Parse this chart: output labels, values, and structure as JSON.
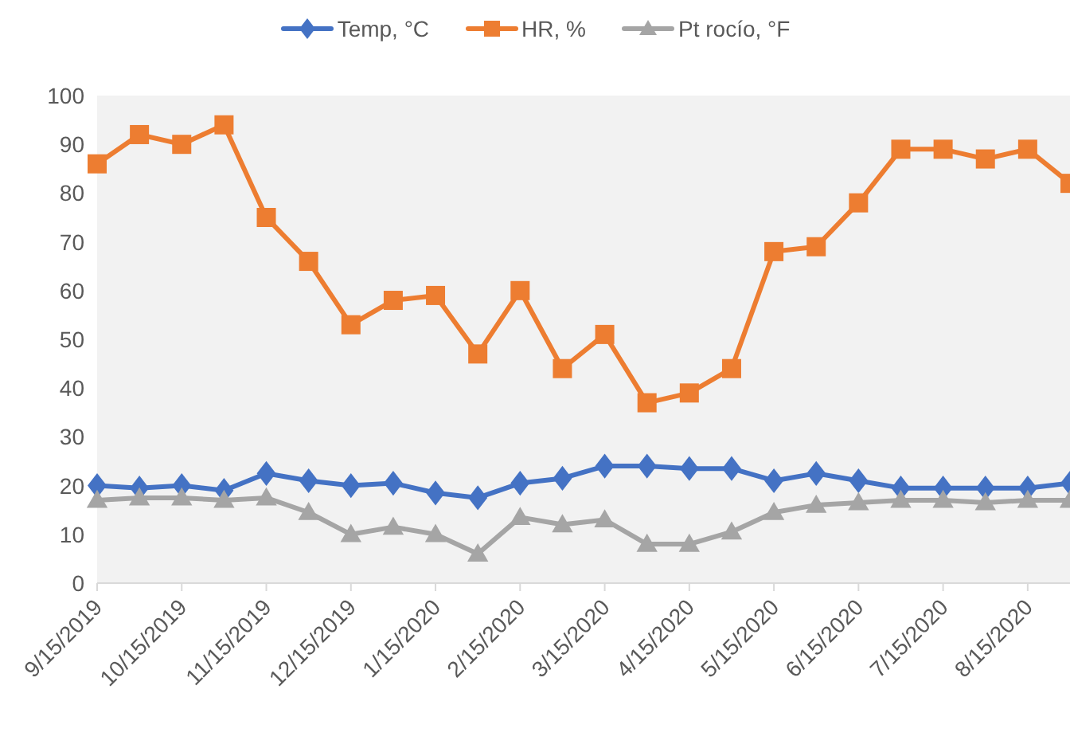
{
  "chart_data": {
    "type": "line",
    "categories": [
      "9/15/2019",
      null,
      "10/15/2019",
      null,
      "11/15/2019",
      null,
      "12/15/2019",
      null,
      "1/15/2020",
      null,
      "2/15/2020",
      null,
      "3/15/2020",
      null,
      "4/15/2020",
      null,
      "5/15/2020",
      null,
      "6/15/2020",
      null,
      "7/15/2020",
      null,
      "8/15/2020",
      null
    ],
    "series": [
      {
        "name": "Temp, °C",
        "color": "#4472c4",
        "marker": "diamond",
        "values": [
          20,
          19.5,
          20,
          19,
          22.5,
          21,
          20,
          20.5,
          18.5,
          17.5,
          20.5,
          21.5,
          24,
          24,
          23.5,
          23.5,
          21,
          22.5,
          21,
          19.5,
          19.5,
          19.5,
          19.5,
          20.5
        ]
      },
      {
        "name": "HR, %",
        "color": "#ed7d31",
        "marker": "square",
        "values": [
          86,
          92,
          90,
          94,
          75,
          66,
          53,
          58,
          59,
          47,
          60,
          44,
          51,
          37,
          39,
          44,
          68,
          69,
          78,
          89,
          89,
          87,
          89,
          82
        ]
      },
      {
        "name": "Pt rocío, °F",
        "color": "#a5a5a5",
        "marker": "triangle",
        "values": [
          17,
          17.5,
          17.5,
          17,
          17.5,
          14.5,
          10,
          11.5,
          10,
          6,
          13.5,
          12,
          13,
          8,
          8,
          10.5,
          14.5,
          16,
          16.5,
          17,
          17,
          16.5,
          17,
          17
        ]
      }
    ],
    "ylim": [
      0,
      100
    ],
    "yticks": [
      0,
      10,
      20,
      30,
      40,
      50,
      60,
      70,
      80,
      90,
      100
    ],
    "grid": false,
    "legend": "top",
    "line_style": "solid"
  }
}
